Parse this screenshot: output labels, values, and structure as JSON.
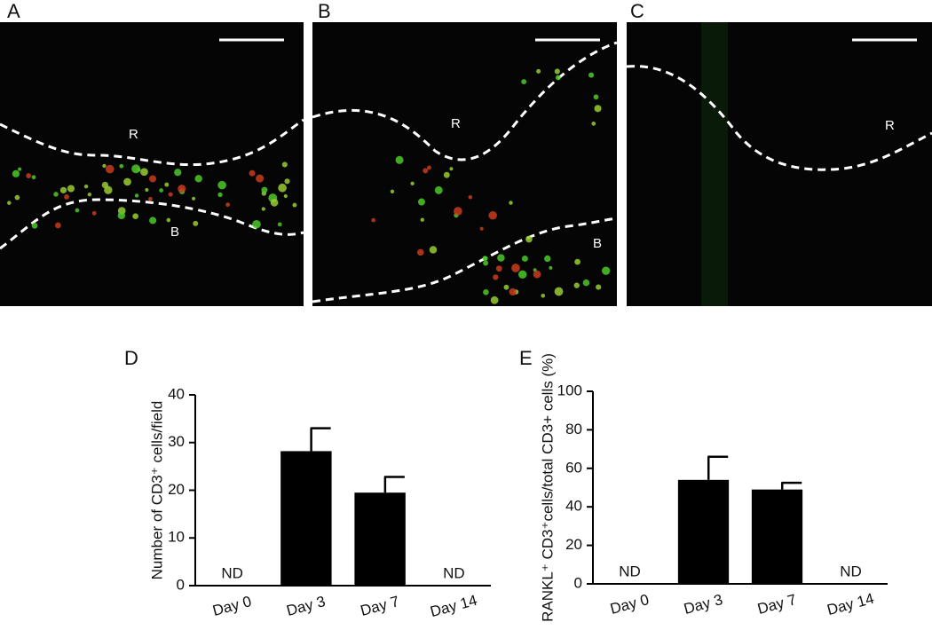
{
  "panels": [
    {
      "label": "A",
      "regions": [
        "R",
        "B"
      ]
    },
    {
      "label": "B",
      "regions": [
        "R",
        "B"
      ]
    },
    {
      "label": "C",
      "regions": [
        "R"
      ]
    }
  ],
  "chart_data": [
    {
      "type": "bar",
      "panel_label": "D",
      "ylabel": "Number of CD3⁺ cells/field",
      "categories": [
        "Day 0",
        "Day 3",
        "Day 7",
        "Day 14"
      ],
      "values": [
        null,
        28.2,
        19.5,
        null
      ],
      "errors": [
        null,
        4.8,
        3.3,
        null
      ],
      "value_labels": [
        "ND",
        null,
        null,
        "ND"
      ],
      "color": "#000000",
      "ylim": [
        0,
        40
      ],
      "yticks": [
        0,
        10,
        20,
        30,
        40
      ]
    },
    {
      "type": "bar",
      "panel_label": "E",
      "ylabel": "RANKL⁺ CD3⁺cells/total CD3+ cells (%)",
      "categories": [
        "Day 0",
        "Day 3",
        "Day 7",
        "Day 14"
      ],
      "values": [
        null,
        54,
        49,
        null
      ],
      "errors": [
        null,
        12,
        3.5,
        null
      ],
      "value_labels": [
        "ND",
        null,
        null,
        "ND"
      ],
      "color": "#000000",
      "ylim": [
        0,
        100
      ],
      "yticks": [
        0,
        20,
        40,
        60,
        80,
        100
      ]
    }
  ]
}
